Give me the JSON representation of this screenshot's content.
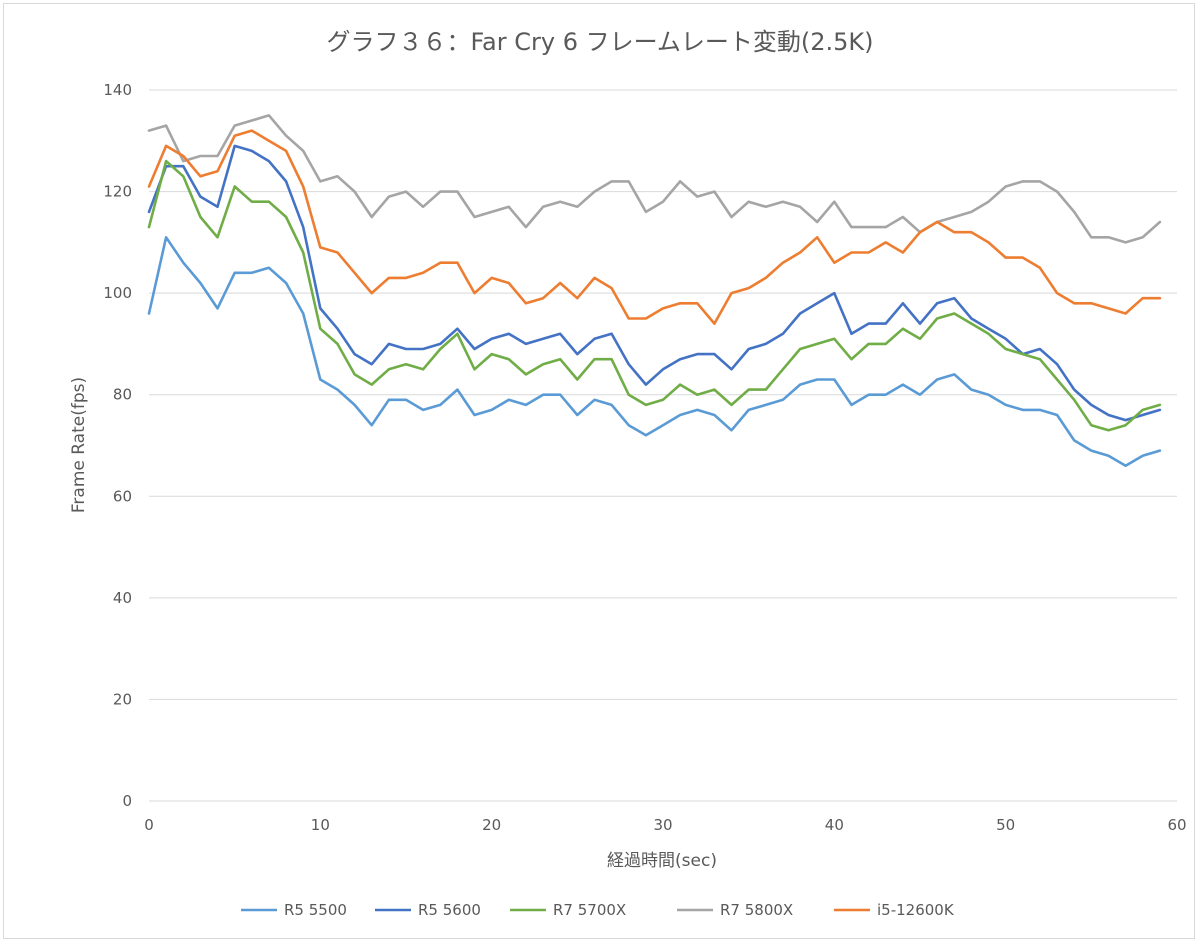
{
  "chart_data": {
    "type": "line",
    "title": "グラフ３６：Far Cry 6 フレームレート変動(2.5K)",
    "xlabel": "経過時間(sec)",
    "ylabel": "Frame Rate(fps)",
    "xlim": [
      0,
      60
    ],
    "ylim": [
      0,
      140
    ],
    "xticks": [
      "0",
      "10",
      "20",
      "30",
      "40",
      "50",
      "60"
    ],
    "yticks": [
      "0",
      "20",
      "40",
      "60",
      "80",
      "100",
      "120",
      "140"
    ],
    "grid": "horizontal",
    "legend_position": "bottom",
    "series": [
      {
        "name": "R5 5500",
        "color": "#5b9bd5",
        "values": [
          96,
          111,
          106,
          102,
          97,
          104,
          104,
          105,
          102,
          96,
          83,
          81,
          78,
          74,
          79,
          79,
          77,
          78,
          81,
          76,
          77,
          79,
          78,
          80,
          80,
          76,
          79,
          78,
          74,
          72,
          74,
          76,
          77,
          76,
          73,
          77,
          78,
          79,
          82,
          83,
          83,
          78,
          80,
          80,
          82,
          80,
          83,
          84,
          81,
          80,
          78,
          77,
          77,
          76,
          71,
          69,
          68,
          66,
          68,
          69
        ]
      },
      {
        "name": "R5 5600",
        "color": "#4472c4",
        "values": [
          116,
          125,
          125,
          119,
          117,
          129,
          128,
          126,
          122,
          113,
          97,
          93,
          88,
          86,
          90,
          89,
          89,
          90,
          93,
          89,
          91,
          92,
          90,
          91,
          92,
          88,
          91,
          92,
          86,
          82,
          85,
          87,
          88,
          88,
          85,
          89,
          90,
          92,
          96,
          98,
          100,
          92,
          94,
          94,
          98,
          94,
          98,
          99,
          95,
          93,
          91,
          88,
          89,
          86,
          81,
          78,
          76,
          75,
          76,
          77
        ]
      },
      {
        "name": "R7 5700X",
        "color": "#70ad47",
        "values": [
          113,
          126,
          123,
          115,
          111,
          121,
          118,
          118,
          115,
          108,
          93,
          90,
          84,
          82,
          85,
          86,
          85,
          89,
          92,
          85,
          88,
          87,
          84,
          86,
          87,
          83,
          87,
          87,
          80,
          78,
          79,
          82,
          80,
          81,
          78,
          81,
          81,
          85,
          89,
          90,
          91,
          87,
          90,
          90,
          93,
          91,
          95,
          96,
          94,
          92,
          89,
          88,
          87,
          83,
          79,
          74,
          73,
          74,
          77,
          78
        ]
      },
      {
        "name": "R7 5800X",
        "color": "#a5a5a5",
        "values": [
          132,
          133,
          126,
          127,
          127,
          133,
          134,
          135,
          131,
          128,
          122,
          123,
          120,
          115,
          119,
          120,
          117,
          120,
          120,
          115,
          116,
          117,
          113,
          117,
          118,
          117,
          120,
          122,
          122,
          116,
          118,
          122,
          119,
          120,
          115,
          118,
          117,
          118,
          117,
          114,
          118,
          113,
          113,
          113,
          115,
          112,
          114,
          115,
          116,
          118,
          121,
          122,
          122,
          120,
          116,
          111,
          111,
          110,
          111,
          114
        ]
      },
      {
        "name": "i5-12600K",
        "color": "#ed7d31",
        "values": [
          121,
          129,
          127,
          123,
          124,
          131,
          132,
          130,
          128,
          121,
          109,
          108,
          104,
          100,
          103,
          103,
          104,
          106,
          106,
          100,
          103,
          102,
          98,
          99,
          102,
          99,
          103,
          101,
          95,
          95,
          97,
          98,
          98,
          94,
          100,
          101,
          103,
          106,
          108,
          111,
          106,
          108,
          108,
          110,
          108,
          112,
          114,
          112,
          112,
          110,
          107,
          107,
          105,
          100,
          98,
          98,
          97,
          96,
          99,
          99
        ]
      }
    ]
  }
}
